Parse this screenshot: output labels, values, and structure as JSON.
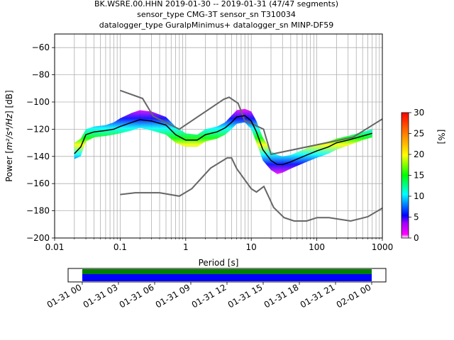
{
  "chart_data": [
    {
      "type": "heatmap",
      "subtype": "probabilistic-power-spectral-density",
      "title_lines": [
        "BK.WSRE.00.HHN   2019-01-30 -- 2019-01-31  (47/47 segments)",
        "sensor_type CMG-3T sensor_sn T310034",
        "datalogger_type GuralpMinimus+ datalogger_sn MINP-DF59"
      ],
      "xlabel": "Period [s]",
      "ylabel_prefix": "Power [",
      "ylabel_units": "m²/s⁴/Hz",
      "ylabel_suffix": "] [dB]",
      "xscale": "log",
      "xlim": [
        0.01,
        1000
      ],
      "ylim": [
        -200,
        -50
      ],
      "x_ticks": [
        0.01,
        0.1,
        1,
        10,
        100,
        1000
      ],
      "x_tick_labels": [
        "0.01",
        "0.1",
        "1",
        "10",
        "100",
        "1000"
      ],
      "y_ticks": [
        -200,
        -180,
        -160,
        -140,
        -120,
        -100,
        -80,
        -60
      ],
      "y_tick_labels": [
        "−200",
        "−180",
        "−160",
        "−140",
        "−120",
        "−100",
        "−80",
        "−60"
      ],
      "grid": true,
      "colorbar": {
        "label": "[%]",
        "range": [
          0,
          30
        ],
        "ticks": [
          0,
          5,
          10,
          15,
          20,
          25,
          30
        ],
        "tick_labels": [
          "0",
          "5",
          "10",
          "15",
          "20",
          "25",
          "30"
        ],
        "colormap": "pqlx"
      },
      "mean_psd": {
        "name": "mean",
        "color": "#000000",
        "x": [
          0.02,
          0.025,
          0.03,
          0.04,
          0.06,
          0.08,
          0.1,
          0.15,
          0.2,
          0.3,
          0.5,
          0.7,
          1,
          1.5,
          2,
          3,
          4,
          5,
          6,
          8,
          10,
          12,
          15,
          20,
          25,
          30,
          40,
          50,
          70,
          100,
          150,
          200,
          300,
          500,
          700
        ],
        "y": [
          -138,
          -133,
          -124,
          -122,
          -121,
          -120,
          -118,
          -115,
          -113,
          -114,
          -117,
          -124,
          -128,
          -128,
          -124,
          -122,
          -119,
          -115,
          -111,
          -110,
          -114,
          -122,
          -135,
          -143,
          -146,
          -146,
          -144,
          -142,
          -139,
          -136,
          -133,
          -130,
          -128,
          -125,
          -123
        ]
      },
      "nlnm": {
        "name": "NLNM",
        "color": "#666666",
        "x": [
          0.1,
          0.17,
          0.4,
          0.8,
          1.24,
          2.4,
          4.3,
          5.0,
          6.0,
          10.0,
          12.0,
          15.6,
          21.9,
          31.6,
          45.0,
          70.0,
          101.0,
          154.0,
          328.0,
          600.0,
          1000.0
        ],
        "y": [
          -168,
          -166.7,
          -166.7,
          -169.2,
          -163.7,
          -148.6,
          -141.1,
          -141.1,
          -149.0,
          -163.8,
          -166.2,
          -162.1,
          -177.5,
          -185.0,
          -187.5,
          -187.5,
          -185.0,
          -185.0,
          -187.5,
          -184.4,
          -178.0
        ]
      },
      "nhnm": {
        "name": "NHNM",
        "color": "#666666",
        "x": [
          0.1,
          0.22,
          0.32,
          0.8,
          3.8,
          4.6,
          6.3,
          7.9,
          15.4,
          20.0,
          354.8,
          1000.0
        ],
        "y": [
          -91.5,
          -97.4,
          -110.5,
          -120.0,
          -98.0,
          -96.5,
          -101.0,
          -113.5,
          -120.0,
          -138.5,
          -126.0,
          -112.5
        ]
      },
      "density_envelope": {
        "x": [
          0.02,
          0.025,
          0.03,
          0.04,
          0.06,
          0.08,
          0.1,
          0.15,
          0.2,
          0.3,
          0.5,
          0.7,
          1,
          1.5,
          2,
          3,
          4,
          5,
          6,
          8,
          10,
          12,
          15,
          20,
          25,
          30,
          40,
          50,
          70,
          100,
          150,
          200,
          300,
          500,
          700
        ],
        "upper": [
          -130,
          -127,
          -120,
          -118,
          -117,
          -115,
          -112,
          -108,
          -106,
          -107,
          -111,
          -118,
          -123,
          -124,
          -120,
          -118,
          -115,
          -110,
          -106,
          -105,
          -107,
          -114,
          -126,
          -136,
          -139,
          -140,
          -139,
          -137,
          -134,
          -131,
          -129,
          -127,
          -125,
          -122,
          -120
        ],
        "lower": [
          -142,
          -140,
          -129,
          -126,
          -125,
          -124,
          -123,
          -121,
          -119,
          -121,
          -124,
          -130,
          -133,
          -133,
          -129,
          -127,
          -124,
          -120,
          -116,
          -115,
          -120,
          -130,
          -143,
          -150,
          -153,
          -152,
          -149,
          -147,
          -144,
          -141,
          -138,
          -135,
          -132,
          -128,
          -126
        ]
      }
    },
    {
      "type": "timeline",
      "subtype": "data-coverage",
      "x_tick_labels": [
        "01-31 00",
        "01-31 03",
        "01-31 06",
        "01-31 09",
        "01-31 12",
        "01-31 15",
        "01-31 18",
        "01-31 21",
        "02-01 00"
      ],
      "bands": [
        {
          "name": "data available",
          "color": "#007f00"
        },
        {
          "name": "processed",
          "color": "#0000ff"
        }
      ],
      "coverage_start": "01-31 00",
      "coverage_end": "02-01 00"
    }
  ]
}
